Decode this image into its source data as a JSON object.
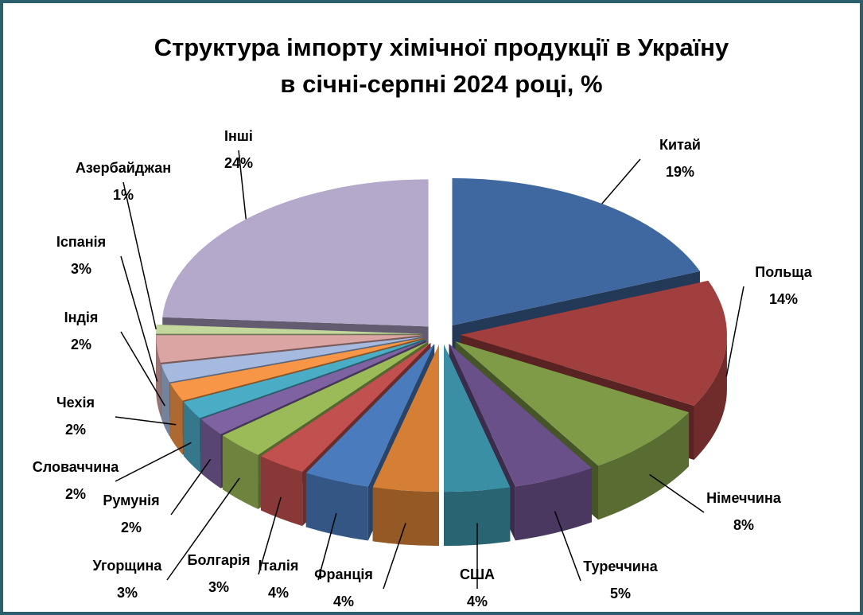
{
  "chart_data": {
    "type": "pie",
    "title": [
      "Структура імпорту хімічної продукції в Україну",
      "в січні-серпні 2024 році, %"
    ],
    "categories": [
      "Китай",
      "Польща",
      "Німеччина",
      "Туреччина",
      "США",
      "Франція",
      "Італія",
      "Болгарія",
      "Угорщина",
      "Румунія",
      "Словаччина",
      "Чехія",
      "Індія",
      "Іспанія",
      "Азербайджан",
      "Інші"
    ],
    "values": [
      19,
      14,
      8,
      5,
      4,
      4,
      4,
      3,
      3,
      2,
      2,
      2,
      2,
      3,
      1,
      24
    ],
    "value_labels": [
      "19%",
      "14%",
      "8%",
      "5%",
      "4%",
      "4%",
      "4%",
      "3%",
      "3%",
      "2%",
      "2%",
      "2%",
      "2%",
      "3%",
      "1%",
      "24%"
    ],
    "colors": [
      "#4068a0",
      "#a03f3d",
      "#7f9b48",
      "#6a5089",
      "#3b8fa4",
      "#d47f35",
      "#4a7bbd",
      "#c2504e",
      "#9bbb59",
      "#7e62a2",
      "#4bacc6",
      "#f79646",
      "#a6badf",
      "#dba5a4",
      "#c4d79d",
      "#b4a8cb"
    ]
  }
}
